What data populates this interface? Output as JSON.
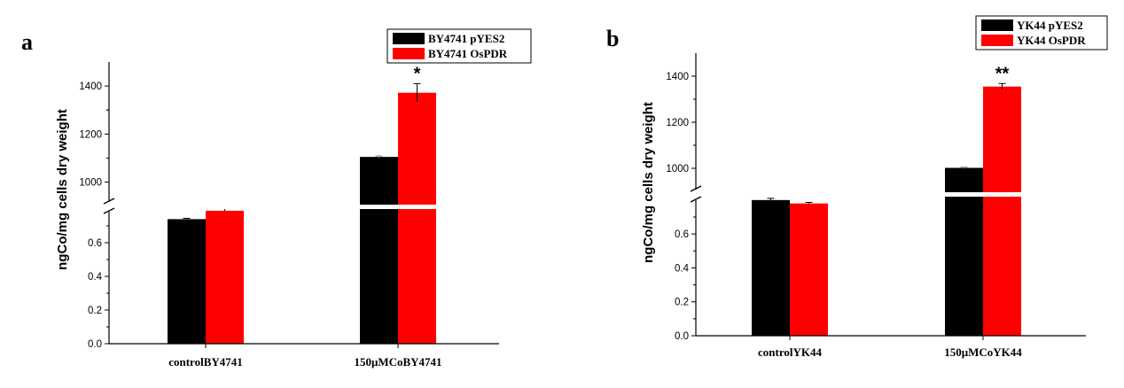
{
  "chart_data": [
    {
      "type": "bar",
      "panel_label": "a",
      "ylabel": "ngCo/mg cells dry weight",
      "categories": [
        "controlBY4741",
        "150μMCoBY4741"
      ],
      "series": [
        {
          "name": "BY4741 pYES2",
          "color": "#000000",
          "values": [
            0.74,
            1105
          ],
          "errors": [
            0.005,
            4
          ]
        },
        {
          "name": "BY4741 OsPDR",
          "color": "#ff0000",
          "values": [
            0.79,
            1372
          ],
          "errors": [
            0.02,
            38
          ]
        }
      ],
      "broken_axis": {
        "lower": {
          "range": [
            0,
            0.8
          ],
          "ticks": [
            0.0,
            0.2,
            0.4,
            0.6
          ]
        },
        "upper": {
          "range": [
            910,
            1500
          ],
          "ticks": [
            1000,
            1200,
            1400
          ]
        }
      },
      "significance": [
        {
          "category": "150μMCoBY4741",
          "series": "BY4741 OsPDR",
          "label": "*"
        }
      ],
      "legend_position": "top-right"
    },
    {
      "type": "bar",
      "panel_label": "b",
      "ylabel": "ngCo/mg cells dry weight",
      "categories": [
        "controlYK44",
        "150μMCoYK44"
      ],
      "series": [
        {
          "name": "YK44 pYES2",
          "color": "#000000",
          "values": [
            0.8,
            1002
          ],
          "errors": [
            0.01,
            3
          ]
        },
        {
          "name": "YK44 OsPDR",
          "color": "#ff0000",
          "values": [
            0.78,
            1355
          ],
          "errors": [
            0.006,
            13
          ]
        }
      ],
      "broken_axis": {
        "lower": {
          "range": [
            0,
            0.82
          ],
          "ticks": [
            0.0,
            0.2,
            0.4,
            0.6
          ]
        },
        "upper": {
          "range": [
            900,
            1500
          ],
          "ticks": [
            1000,
            1200,
            1400
          ]
        }
      },
      "significance": [
        {
          "category": "150μMCoYK44",
          "series": "YK44 OsPDR",
          "label": "**"
        }
      ],
      "legend_position": "top-right"
    }
  ]
}
